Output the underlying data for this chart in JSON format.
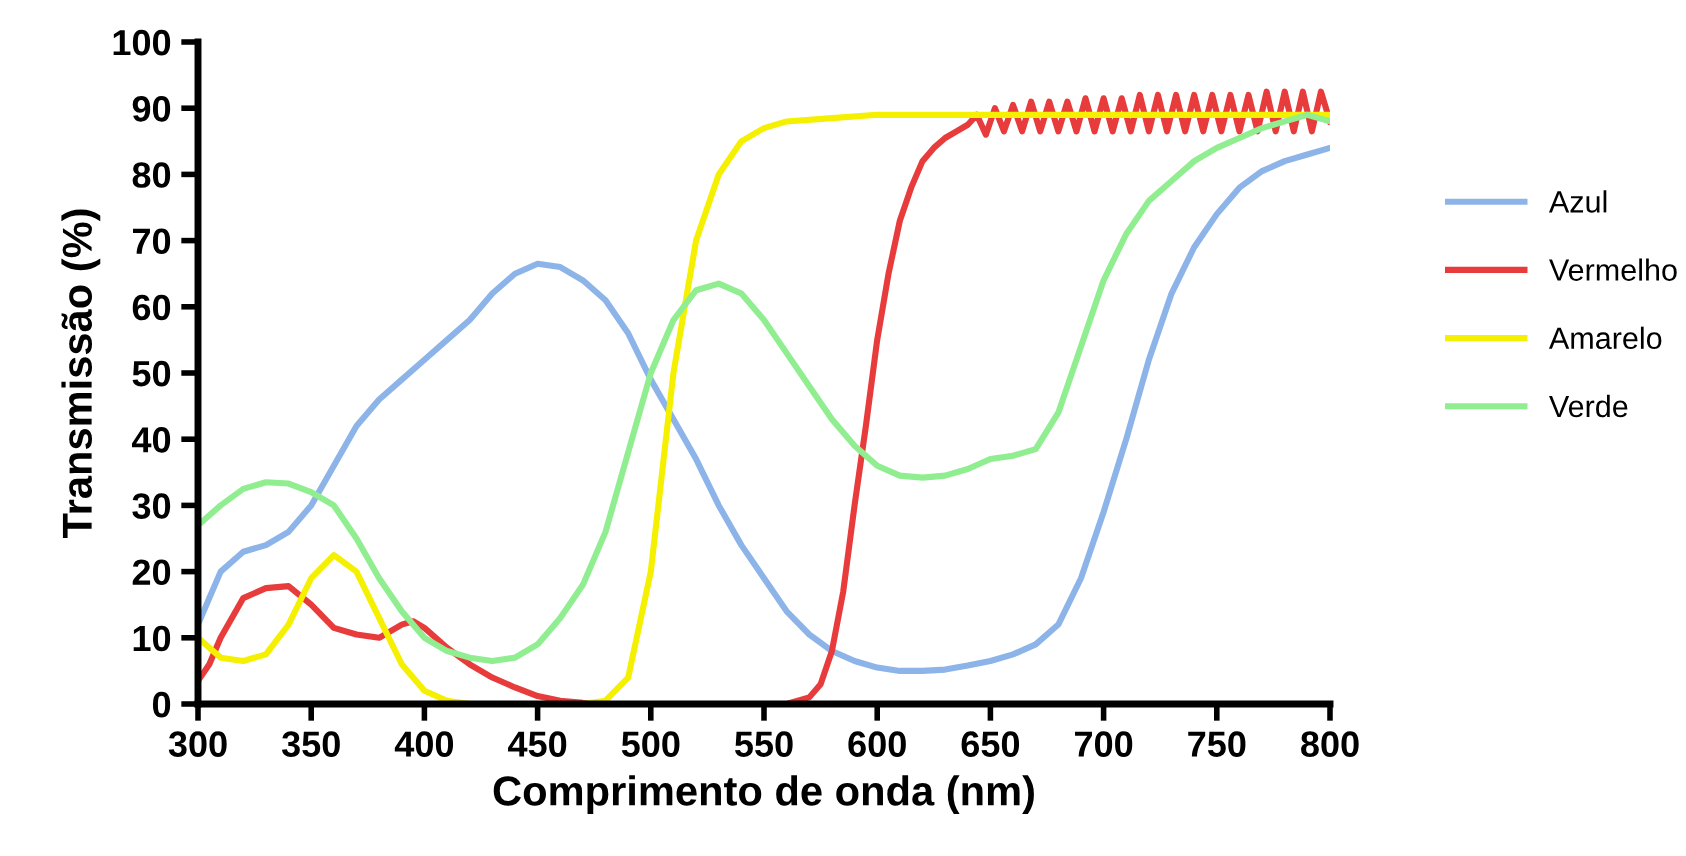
{
  "chart_data": {
    "type": "line",
    "xlabel": "Comprimento de onda (nm)",
    "ylabel": "Transmissão (%)",
    "xlim": [
      300,
      800
    ],
    "xticks": [
      300,
      350,
      400,
      450,
      500,
      550,
      600,
      650,
      700,
      750,
      800
    ],
    "ylim": [
      0,
      100
    ],
    "yticks": [
      0,
      10,
      20,
      30,
      40,
      50,
      60,
      70,
      80,
      90,
      100
    ],
    "grid": false,
    "legend": "right",
    "marker": "none",
    "line_style": "solid",
    "series": [
      {
        "name": "Azul",
        "color": "#8db4e8",
        "x": [
          300,
          310,
          320,
          330,
          340,
          350,
          360,
          370,
          380,
          390,
          400,
          410,
          420,
          430,
          440,
          450,
          460,
          470,
          480,
          490,
          500,
          510,
          520,
          530,
          540,
          550,
          560,
          570,
          580,
          590,
          600,
          610,
          620,
          630,
          640,
          650,
          660,
          670,
          680,
          690,
          700,
          710,
          720,
          730,
          740,
          750,
          760,
          770,
          780,
          790,
          800
        ],
        "values": [
          12,
          20,
          23,
          24,
          26,
          30,
          36,
          42,
          46,
          49,
          52,
          55,
          58,
          62,
          65,
          66.5,
          66,
          64,
          61,
          56,
          49,
          43,
          37,
          30,
          24,
          19,
          14,
          10.5,
          8,
          6.5,
          5.5,
          5,
          5,
          5.2,
          5.8,
          6.5,
          7.5,
          9,
          12,
          19,
          29,
          40,
          52,
          62,
          69,
          74,
          78,
          80.5,
          82,
          83,
          84
        ]
      },
      {
        "name": "Vermelho",
        "color": "#e83c3c",
        "x": [
          300,
          305,
          310,
          320,
          330,
          340,
          350,
          360,
          370,
          380,
          390,
          395,
          400,
          410,
          420,
          430,
          440,
          450,
          460,
          470,
          480,
          560,
          570,
          575,
          580,
          585,
          590,
          595,
          600,
          605,
          610,
          615,
          620,
          625,
          630,
          635,
          640,
          644,
          648,
          652,
          656,
          660,
          664,
          668,
          672,
          676,
          680,
          684,
          688,
          692,
          696,
          700,
          704,
          708,
          712,
          716,
          720,
          724,
          728,
          732,
          736,
          740,
          744,
          748,
          752,
          756,
          760,
          764,
          768,
          772,
          776,
          780,
          784,
          788,
          792,
          796,
          800
        ],
        "values": [
          3.5,
          6,
          10,
          16,
          17.5,
          17.8,
          15,
          11.5,
          10.5,
          10,
          12,
          12.5,
          11.5,
          8.5,
          6,
          4,
          2.5,
          1.2,
          0.5,
          0.2,
          0,
          0,
          1,
          3,
          8,
          17,
          30,
          42,
          55,
          65,
          73,
          78,
          82,
          84,
          85.5,
          86.5,
          87.5,
          89,
          86,
          90,
          86.5,
          90.5,
          86.5,
          91,
          86.5,
          91,
          86.5,
          91,
          86.5,
          91.5,
          86.5,
          91.5,
          86.5,
          91.5,
          86.5,
          92,
          86.5,
          92,
          86.5,
          92,
          86.5,
          92,
          86.5,
          92,
          86.5,
          92,
          86.5,
          92,
          86.5,
          92.5,
          86.5,
          92.5,
          86.5,
          92.5,
          86.5,
          92.5,
          88
        ]
      },
      {
        "name": "Amarelo",
        "color": "#f5f000",
        "x": [
          300,
          310,
          320,
          330,
          340,
          350,
          360,
          370,
          380,
          390,
          400,
          410,
          420,
          450,
          470,
          480,
          490,
          500,
          510,
          520,
          530,
          540,
          550,
          560,
          580,
          600,
          650,
          700,
          750,
          800
        ],
        "values": [
          10,
          7,
          6.5,
          7.5,
          12,
          19,
          22.5,
          20,
          13,
          6,
          2,
          0.5,
          0,
          0,
          0,
          0.5,
          4,
          20,
          50,
          70,
          80,
          85,
          87,
          88,
          88.5,
          89,
          89,
          89,
          89,
          89
        ]
      },
      {
        "name": "Verde",
        "color": "#90ee90",
        "x": [
          300,
          310,
          320,
          330,
          340,
          350,
          360,
          370,
          380,
          390,
          400,
          410,
          420,
          430,
          440,
          450,
          460,
          470,
          480,
          490,
          500,
          510,
          520,
          530,
          540,
          550,
          560,
          570,
          580,
          590,
          600,
          610,
          620,
          630,
          640,
          650,
          660,
          670,
          680,
          690,
          700,
          710,
          720,
          730,
          740,
          750,
          760,
          770,
          780,
          790,
          800
        ],
        "values": [
          27,
          30,
          32.5,
          33.5,
          33.3,
          32,
          30,
          25,
          19,
          14,
          10,
          8,
          7,
          6.5,
          7,
          9,
          13,
          18,
          26,
          38,
          50,
          58,
          62.5,
          63.5,
          62,
          58,
          53,
          48,
          43,
          39,
          36,
          34.5,
          34.2,
          34.5,
          35.5,
          37,
          37.5,
          38.5,
          44,
          54,
          64,
          71,
          76,
          79,
          82,
          84,
          85.5,
          87,
          88,
          89,
          88
        ]
      }
    ]
  }
}
